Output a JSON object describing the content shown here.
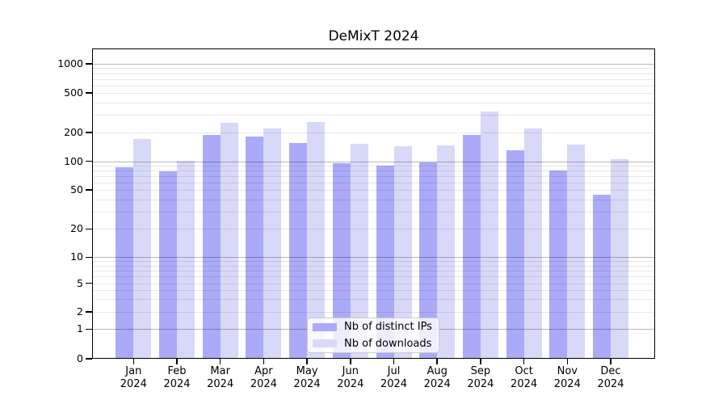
{
  "title": "DeMixT 2024",
  "legend": {
    "items": [
      {
        "label": "Nb of distinct IPs",
        "color": "#aaaaf8"
      },
      {
        "label": "Nb of downloads",
        "color": "#d8d8f8"
      }
    ]
  },
  "chart_data": {
    "type": "bar",
    "title": "DeMixT 2024",
    "categories": [
      "Jan",
      "Feb",
      "Mar",
      "Apr",
      "May",
      "Jun",
      "Jul",
      "Aug",
      "Sep",
      "Oct",
      "Nov",
      "Dec"
    ],
    "category_year": "2024",
    "series": [
      {
        "name": "Nb of distinct IPs",
        "color": "#aaaaf8",
        "values": [
          87,
          78,
          188,
          180,
          156,
          96,
          91,
          98,
          190,
          130,
          80,
          45
        ]
      },
      {
        "name": "Nb of downloads",
        "color": "#d8d8f8",
        "values": [
          171,
          102,
          250,
          220,
          256,
          152,
          143,
          148,
          325,
          221,
          150,
          106
        ]
      }
    ],
    "xlabel": "",
    "ylabel": "",
    "y_axis": {
      "scale": "log-like (0 baseline)",
      "tick_values": [
        0,
        1,
        2,
        5,
        10,
        20,
        50,
        100,
        200,
        500,
        1000
      ],
      "tick_labels": [
        "0",
        "1",
        "2",
        "5",
        "10",
        "20",
        "50",
        "100",
        "200",
        "500",
        "1000"
      ],
      "ylim": [
        0,
        1400
      ],
      "major_grid_values": [
        1,
        10,
        100,
        1000
      ],
      "minor_grid_base": [
        2,
        3,
        4,
        5,
        6,
        7,
        8,
        9
      ],
      "minor_grid_decades": [
        1,
        10,
        100
      ]
    },
    "grid": "horizontal, drawn over bars",
    "legend_position": "lower center (inside axes)",
    "colors": {
      "bar_dark": "#aaaaf8",
      "bar_light": "#d8d8f8",
      "grid_major": "#bdbdbd",
      "grid_minor": "#ebebeb",
      "spine": "#000000",
      "background": "#ffffff"
    }
  }
}
